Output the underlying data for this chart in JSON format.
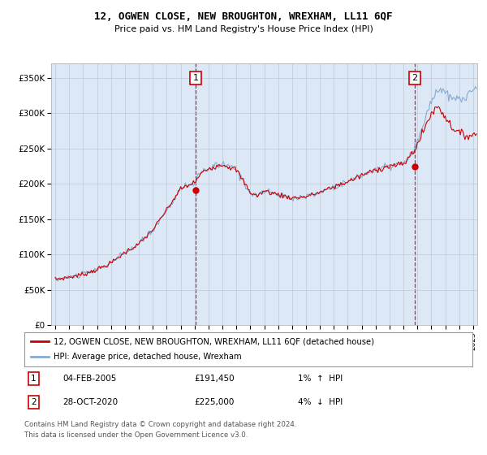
{
  "title": "12, OGWEN CLOSE, NEW BROUGHTON, WREXHAM, LL11 6QF",
  "subtitle": "Price paid vs. HM Land Registry's House Price Index (HPI)",
  "ytick_values": [
    0,
    50000,
    100000,
    150000,
    200000,
    250000,
    300000,
    350000
  ],
  "ylim": [
    0,
    370000
  ],
  "xlim_start": 1994.7,
  "xlim_end": 2025.3,
  "sale1_x": 2005.08,
  "sale1_y": 191450,
  "sale2_x": 2020.82,
  "sale2_y": 225000,
  "line_color_house": "#cc0000",
  "line_color_hpi": "#88aad0",
  "vline_color": "#cc0000",
  "plot_bg_color": "#dce8f5",
  "bg_color": "#ffffff",
  "grid_color": "#c0c8d8",
  "legend_house": "12, OGWEN CLOSE, NEW BROUGHTON, WREXHAM, LL11 6QF (detached house)",
  "legend_hpi": "HPI: Average price, detached house, Wrexham",
  "footer1": "Contains HM Land Registry data © Crown copyright and database right 2024.",
  "footer2": "This data is licensed under the Open Government Licence v3.0."
}
